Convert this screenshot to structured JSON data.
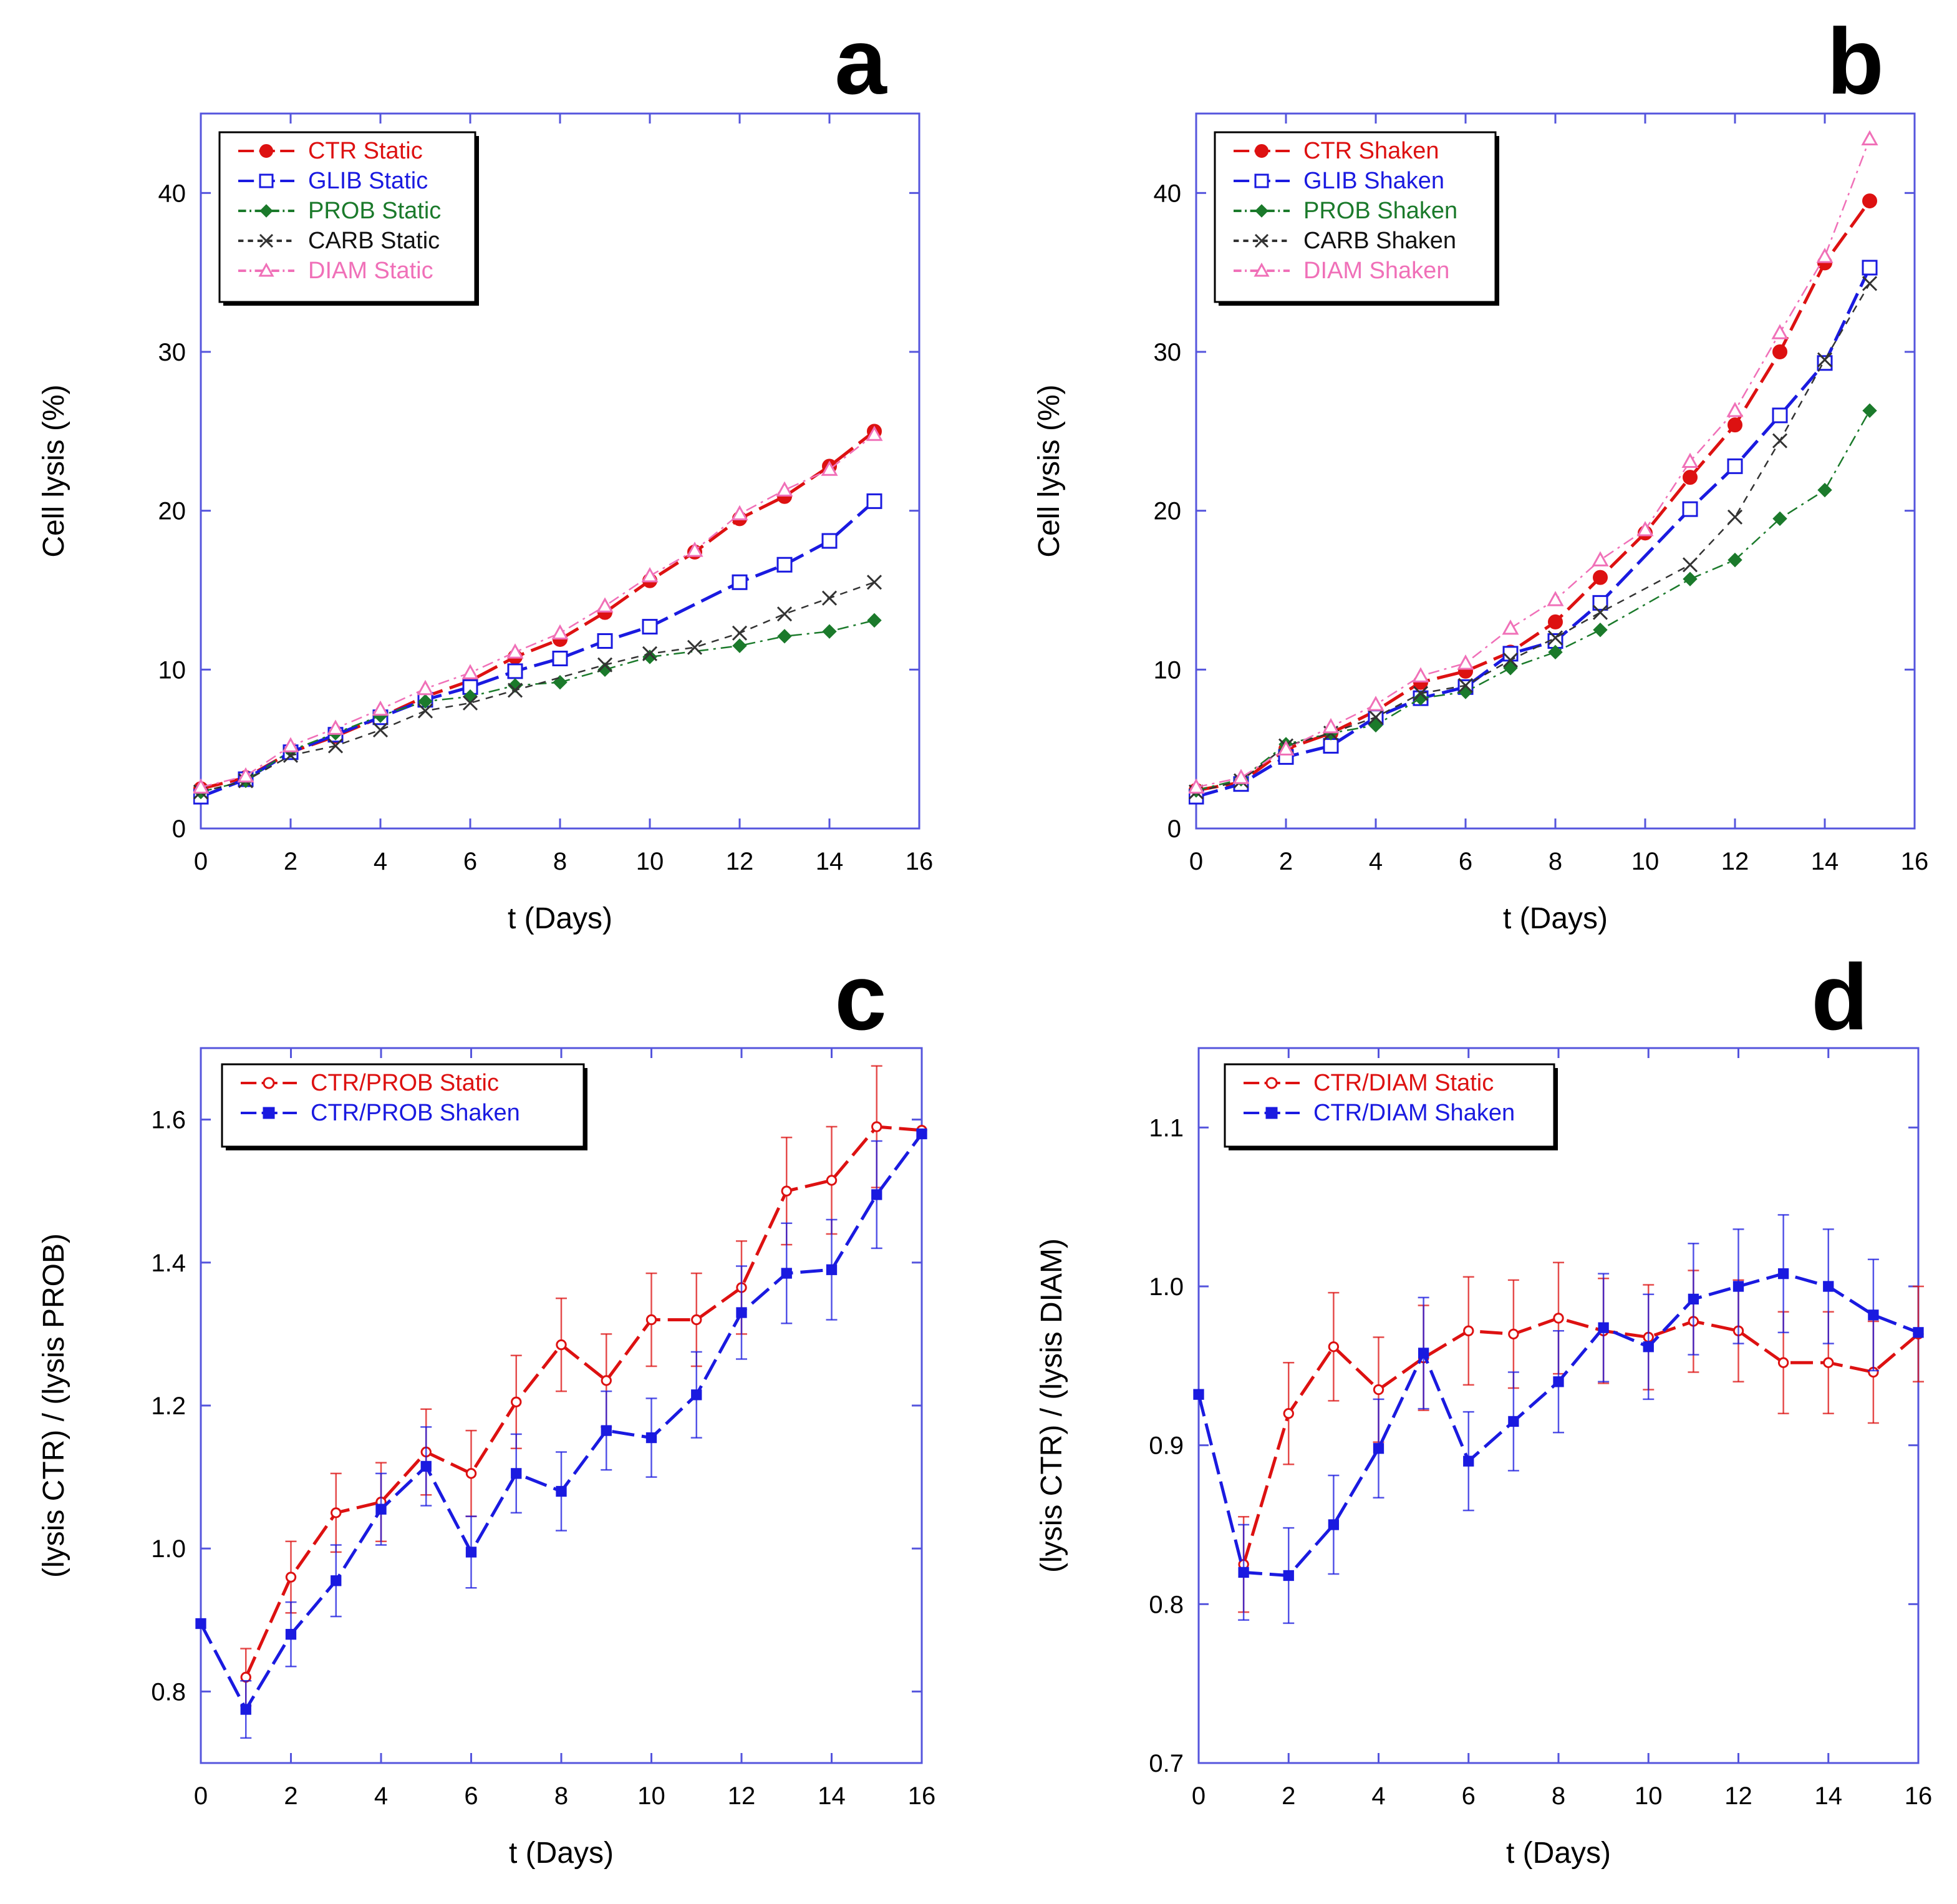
{
  "figure": {
    "panels": [
      "a",
      "b",
      "c",
      "d"
    ]
  },
  "chart_data": [
    {
      "id": "a",
      "letter": "a",
      "type": "line",
      "xlabel": "t  (Days)",
      "ylabel": "Cell lysis  (%)",
      "xlim": [
        0,
        16
      ],
      "ylim": [
        0,
        45
      ],
      "xticks": [
        0,
        2,
        4,
        6,
        8,
        10,
        12,
        14,
        16
      ],
      "yticks": [
        0,
        10,
        20,
        30,
        40
      ],
      "x": [
        0,
        1,
        2,
        3,
        4,
        5,
        6,
        7,
        8,
        9,
        10,
        11,
        12,
        13,
        14,
        15
      ],
      "series": [
        {
          "name": "CTR Static",
          "color": "#dd1111",
          "marker": "filled-circle",
          "dash": "long-dash",
          "values": [
            2.5,
            3.2,
            4.8,
            5.8,
            7.0,
            8.3,
            9.3,
            10.8,
            11.9,
            13.6,
            15.6,
            17.4,
            19.5,
            20.9,
            22.8,
            25.0
          ]
        },
        {
          "name": "GLIB Static",
          "color": "#1a1ae0",
          "marker": "open-square",
          "dash": "long-dash",
          "values": [
            2.0,
            3.1,
            4.8,
            5.9,
            7.0,
            8.1,
            8.9,
            9.9,
            10.7,
            11.8,
            12.7,
            null,
            15.5,
            16.6,
            18.1,
            20.6
          ]
        },
        {
          "name": "PROB Static",
          "color": "#1b7a2b",
          "marker": "filled-diamond",
          "dash": "dash-dot",
          "values": [
            2.3,
            3.0,
            4.9,
            6.0,
            7.1,
            8.0,
            8.3,
            9.0,
            9.2,
            10.0,
            10.8,
            null,
            11.5,
            12.1,
            12.4,
            13.1
          ]
        },
        {
          "name": "CARB Static",
          "color": "#333333",
          "marker": "cross",
          "dash": "short-dash",
          "values": [
            2.3,
            3.0,
            4.6,
            5.2,
            6.2,
            7.4,
            7.9,
            8.7,
            null,
            10.3,
            11.0,
            11.4,
            12.3,
            13.5,
            14.5,
            15.5
          ]
        },
        {
          "name": "DIAM Static",
          "color": "#f070b8",
          "marker": "open-triangle",
          "dash": "dash-dot",
          "values": [
            2.6,
            3.3,
            5.2,
            6.3,
            7.5,
            8.8,
            9.8,
            11.1,
            12.3,
            14.0,
            15.9,
            17.5,
            19.8,
            21.3,
            22.6,
            24.8
          ]
        }
      ]
    },
    {
      "id": "b",
      "letter": "b",
      "type": "line",
      "xlabel": "t  (Days)",
      "ylabel": "Cell lysis  (%)",
      "xlim": [
        0,
        16
      ],
      "ylim": [
        0,
        45
      ],
      "xticks": [
        0,
        2,
        4,
        6,
        8,
        10,
        12,
        14,
        16
      ],
      "yticks": [
        0,
        10,
        20,
        30,
        40
      ],
      "x": [
        0,
        1,
        2,
        3,
        4,
        5,
        6,
        7,
        8,
        9,
        10,
        11,
        12,
        13,
        14,
        15
      ],
      "series": [
        {
          "name": "CTR Shaken",
          "color": "#dd1111",
          "marker": "filled-circle",
          "dash": "long-dash",
          "values": [
            2.4,
            2.9,
            5.0,
            6.0,
            7.4,
            9.2,
            9.9,
            11.1,
            13.0,
            15.8,
            18.6,
            22.1,
            25.4,
            30.0,
            35.6,
            39.5
          ]
        },
        {
          "name": "GLIB Shaken",
          "color": "#1a1ae0",
          "marker": "open-square",
          "dash": "long-dash",
          "values": [
            2.0,
            2.8,
            4.5,
            5.2,
            7.0,
            8.2,
            8.9,
            11.0,
            11.8,
            14.2,
            null,
            20.1,
            22.8,
            26.0,
            29.3,
            35.3
          ]
        },
        {
          "name": "PROB Shaken",
          "color": "#1b7a2b",
          "marker": "filled-diamond",
          "dash": "dash-dot",
          "values": [
            2.4,
            3.1,
            5.3,
            6.0,
            6.5,
            8.2,
            8.6,
            10.1,
            11.1,
            12.5,
            null,
            15.7,
            16.9,
            19.5,
            21.3,
            26.3
          ]
        },
        {
          "name": "CARB Shaken",
          "color": "#333333",
          "marker": "cross",
          "dash": "short-dash",
          "values": [
            2.3,
            3.0,
            5.2,
            6.0,
            7.0,
            8.5,
            9.0,
            10.6,
            12.0,
            13.6,
            null,
            16.6,
            19.6,
            24.4,
            29.5,
            34.3
          ]
        },
        {
          "name": "DIAM Shaken",
          "color": "#f070b8",
          "marker": "open-triangle",
          "dash": "dash-dot",
          "values": [
            2.6,
            3.2,
            5.0,
            6.4,
            7.8,
            9.6,
            10.4,
            12.6,
            14.4,
            16.9,
            18.8,
            23.1,
            26.3,
            31.2,
            36.0,
            43.4
          ]
        }
      ]
    },
    {
      "id": "c",
      "letter": "c",
      "type": "line",
      "xlabel": "t  (Days)",
      "ylabel": "(lysis CTR) / (lysis PROB)",
      "xlim": [
        0,
        16
      ],
      "ylim": [
        0.7,
        1.7
      ],
      "xticks": [
        0,
        2,
        4,
        6,
        8,
        10,
        12,
        14,
        16
      ],
      "yticks": [
        0.8,
        1.0,
        1.2,
        1.4,
        1.6
      ],
      "yticks_labels": [
        "0.8",
        "1.0",
        "1.2",
        "1.4",
        "1.6"
      ],
      "series": [
        {
          "name": "CTR/PROB Static",
          "color": "#dd1111",
          "marker": "open-circle",
          "dash": "long-dash",
          "x": [
            1,
            2,
            3,
            4,
            5,
            6,
            7,
            8,
            9,
            10,
            11,
            12,
            13,
            14,
            15,
            16
          ],
          "values": [
            0.82,
            0.96,
            1.05,
            1.065,
            1.135,
            1.105,
            1.205,
            1.285,
            1.235,
            1.32,
            1.32,
            1.365,
            1.5,
            1.515,
            1.59,
            1.585
          ],
          "errors": [
            0.04,
            0.05,
            0.055,
            0.055,
            0.06,
            0.06,
            0.065,
            0.065,
            0.065,
            0.065,
            0.065,
            0.065,
            0.075,
            0.075,
            0.085,
            0.0
          ]
        },
        {
          "name": "CTR/PROB Shaken",
          "color": "#1a1ae0",
          "marker": "filled-square",
          "dash": "long-dash",
          "x": [
            0,
            1,
            2,
            3,
            4,
            5,
            6,
            7,
            8,
            9,
            10,
            11,
            12,
            13,
            14,
            15,
            16
          ],
          "values": [
            0.895,
            0.775,
            0.88,
            0.955,
            1.055,
            1.115,
            0.995,
            1.105,
            1.08,
            1.165,
            1.155,
            1.215,
            1.33,
            1.385,
            1.39,
            1.495,
            1.58
          ],
          "errors": [
            0.0,
            0.04,
            0.045,
            0.05,
            0.05,
            0.055,
            0.05,
            0.055,
            0.055,
            0.055,
            0.055,
            0.06,
            0.065,
            0.07,
            0.07,
            0.075,
            0.0
          ]
        }
      ]
    },
    {
      "id": "d",
      "letter": "d",
      "type": "line",
      "xlabel": "t  (Days)",
      "ylabel": "(lysis CTR) / (lysis DIAM)",
      "xlim": [
        0,
        16
      ],
      "ylim": [
        0.7,
        1.15
      ],
      "xticks": [
        0,
        2,
        4,
        6,
        8,
        10,
        12,
        14,
        16
      ],
      "yticks": [
        0.7,
        0.8,
        0.9,
        1.0,
        1.1
      ],
      "yticks_labels": [
        "0.7",
        "0.8",
        "0.9",
        "1.0",
        "1.1"
      ],
      "series": [
        {
          "name": "CTR/DIAM Static",
          "color": "#dd1111",
          "marker": "open-circle",
          "dash": "long-dash",
          "x": [
            1,
            2,
            3,
            4,
            5,
            6,
            7,
            8,
            9,
            10,
            11,
            12,
            13,
            14,
            15,
            16
          ],
          "values": [
            0.825,
            0.92,
            0.962,
            0.935,
            0.955,
            0.972,
            0.97,
            0.98,
            0.972,
            0.968,
            0.978,
            0.972,
            0.952,
            0.952,
            0.946,
            0.97
          ],
          "errors": [
            0.03,
            0.032,
            0.034,
            0.033,
            0.033,
            0.034,
            0.034,
            0.035,
            0.033,
            0.033,
            0.032,
            0.032,
            0.032,
            0.032,
            0.032,
            0.03
          ]
        },
        {
          "name": "CTR/DIAM Shaken",
          "color": "#1a1ae0",
          "marker": "filled-square",
          "dash": "long-dash",
          "x": [
            0,
            1,
            2,
            3,
            4,
            5,
            6,
            7,
            8,
            9,
            10,
            11,
            12,
            13,
            14,
            15,
            16
          ],
          "values": [
            0.932,
            0.82,
            0.818,
            0.85,
            0.898,
            0.958,
            0.89,
            0.915,
            0.94,
            0.974,
            0.962,
            0.992,
            1.0,
            1.008,
            1.0,
            0.982,
            0.971
          ],
          "errors": [
            0.0,
            0.03,
            0.03,
            0.031,
            0.031,
            0.035,
            0.031,
            0.031,
            0.032,
            0.034,
            0.033,
            0.035,
            0.036,
            0.037,
            0.036,
            0.035,
            0.0
          ]
        }
      ]
    }
  ]
}
